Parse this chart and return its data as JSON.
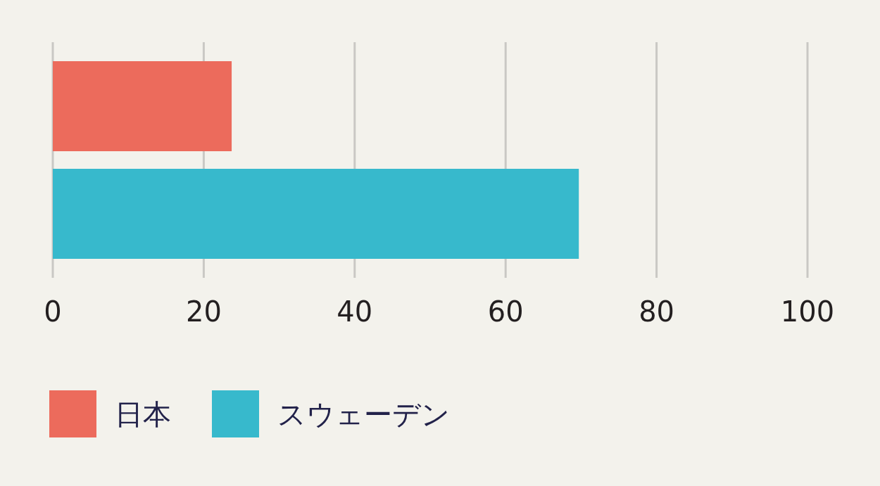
{
  "chart_data": {
    "type": "bar",
    "orientation": "horizontal",
    "categories": [
      null
    ],
    "series": [
      {
        "name": "日本",
        "color": "#ec6b5c",
        "values": [
          23.7
        ]
      },
      {
        "name": "スウェーデン",
        "color": "#37b9cc",
        "values": [
          69.7
        ]
      }
    ],
    "xlim": [
      0,
      100
    ],
    "xticks": [
      0,
      20,
      40,
      60,
      80,
      100
    ],
    "grid": "x",
    "legend": "bottom left"
  }
}
